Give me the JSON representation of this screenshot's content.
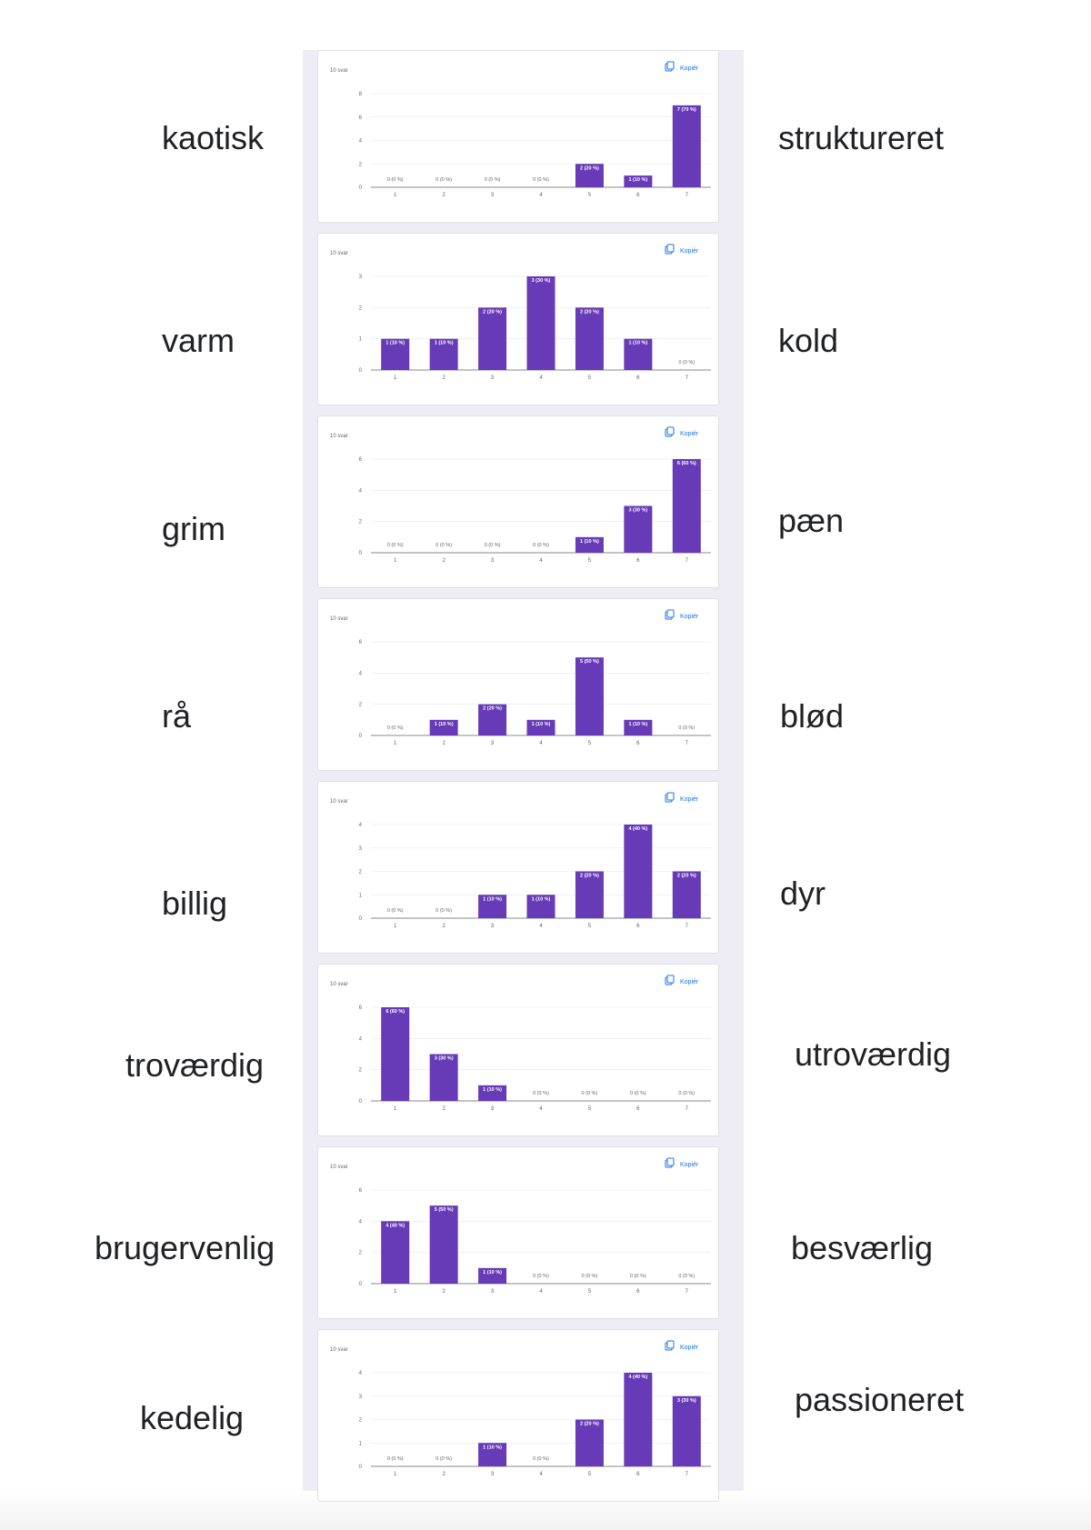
{
  "rows": [
    {
      "left": "kaotisk",
      "right": "struktureret",
      "chart": {
        "responses": "10 svar",
        "copy": "Kopiér",
        "yticks": [
          "0",
          "2",
          "4",
          "6",
          "8"
        ],
        "ymax": 8,
        "values": [
          0,
          0,
          0,
          0,
          2,
          1,
          7
        ],
        "labels": [
          "0 (0 %)",
          "0 (0 %)",
          "0 (0 %)",
          "0 (0 %)",
          "2 (20 %)",
          "1 (10 %)",
          "7 (70 %)"
        ]
      }
    },
    {
      "left": "varm",
      "right": "kold",
      "chart": {
        "responses": "10 svar",
        "copy": "Kopiér",
        "yticks": [
          "0",
          "1",
          "2",
          "3"
        ],
        "ymax": 3,
        "values": [
          1,
          1,
          2,
          3,
          2,
          1,
          0
        ],
        "labels": [
          "1 (10 %)",
          "1 (10 %)",
          "2 (20 %)",
          "3 (30 %)",
          "2 (20 %)",
          "1 (10 %)",
          "0 (0 %)"
        ]
      }
    },
    {
      "left": "grim",
      "right": "pæn",
      "chart": {
        "responses": "10 svar",
        "copy": "Kopiér",
        "yticks": [
          "0",
          "2",
          "4",
          "6"
        ],
        "ymax": 6,
        "values": [
          0,
          0,
          0,
          0,
          1,
          3,
          6
        ],
        "labels": [
          "0 (0 %)",
          "0 (0 %)",
          "0 (0 %)",
          "0 (0 %)",
          "1 (10 %)",
          "3 (30 %)",
          "6 (60 %)"
        ]
      }
    },
    {
      "left": "rå",
      "right": "blød",
      "chart": {
        "responses": "10 svar",
        "copy": "Kopiér",
        "yticks": [
          "0",
          "2",
          "4",
          "6"
        ],
        "ymax": 6,
        "values": [
          0,
          1,
          2,
          1,
          5,
          1,
          0
        ],
        "labels": [
          "0 (0 %)",
          "1 (10 %)",
          "2 (20 %)",
          "1 (10 %)",
          "5 (50 %)",
          "1 (10 %)",
          "0 (0 %)"
        ]
      }
    },
    {
      "left": "billig",
      "right": "dyr",
      "chart": {
        "responses": "10 svar",
        "copy": "Kopiér",
        "yticks": [
          "0",
          "1",
          "2",
          "3",
          "4"
        ],
        "ymax": 4,
        "values": [
          0,
          0,
          1,
          1,
          2,
          4,
          2
        ],
        "labels": [
          "0 (0 %)",
          "0 (0 %)",
          "1 (10 %)",
          "1 (10 %)",
          "2 (20 %)",
          "4 (40 %)",
          "2 (20 %)"
        ]
      }
    },
    {
      "left": "troværdig",
      "right": "utroværdig",
      "chart": {
        "responses": "10 svar",
        "copy": "Kopiér",
        "yticks": [
          "0",
          "2",
          "4",
          "6"
        ],
        "ymax": 6,
        "values": [
          6,
          3,
          1,
          0,
          0,
          0,
          0
        ],
        "labels": [
          "6 (60 %)",
          "3 (30 %)",
          "1 (10 %)",
          "0 (0 %)",
          "0 (0 %)",
          "0 (0 %)",
          "0 (0 %)"
        ]
      }
    },
    {
      "left": "brugervenlig",
      "right": "besværlig",
      "chart": {
        "responses": "10 svar",
        "copy": "Kopiér",
        "yticks": [
          "0",
          "2",
          "4",
          "6"
        ],
        "ymax": 6,
        "values": [
          4,
          5,
          1,
          0,
          0,
          0,
          0
        ],
        "labels": [
          "4 (40 %)",
          "5 (50 %)",
          "1 (10 %)",
          "0 (0 %)",
          "0 (0 %)",
          "0 (0 %)",
          "0 (0 %)"
        ]
      }
    },
    {
      "left": "kedelig",
      "right": "passioneret",
      "chart": {
        "responses": "10 svar",
        "copy": "Kopiér",
        "yticks": [
          "0",
          "1",
          "2",
          "3",
          "4"
        ],
        "ymax": 4,
        "values": [
          0,
          0,
          1,
          0,
          2,
          4,
          3
        ],
        "labels": [
          "0 (0 %)",
          "0 (0 %)",
          "1 (10 %)",
          "0 (0 %)",
          "2 (20 %)",
          "4 (40 %)",
          "3 (30 %)"
        ]
      }
    }
  ],
  "chart_data": [
    {
      "type": "bar",
      "categories": [
        "1",
        "2",
        "3",
        "4",
        "5",
        "6",
        "7"
      ],
      "values": [
        0,
        0,
        0,
        0,
        2,
        1,
        7
      ],
      "ylim": [
        0,
        8
      ]
    },
    {
      "type": "bar",
      "categories": [
        "1",
        "2",
        "3",
        "4",
        "5",
        "6",
        "7"
      ],
      "values": [
        1,
        1,
        2,
        3,
        2,
        1,
        0
      ],
      "ylim": [
        0,
        3
      ]
    },
    {
      "type": "bar",
      "categories": [
        "1",
        "2",
        "3",
        "4",
        "5",
        "6",
        "7"
      ],
      "values": [
        0,
        0,
        0,
        0,
        1,
        3,
        6
      ],
      "ylim": [
        0,
        6
      ]
    },
    {
      "type": "bar",
      "categories": [
        "1",
        "2",
        "3",
        "4",
        "5",
        "6",
        "7"
      ],
      "values": [
        0,
        1,
        2,
        1,
        5,
        1,
        0
      ],
      "ylim": [
        0,
        6
      ]
    },
    {
      "type": "bar",
      "categories": [
        "1",
        "2",
        "3",
        "4",
        "5",
        "6",
        "7"
      ],
      "values": [
        0,
        0,
        1,
        1,
        2,
        4,
        2
      ],
      "ylim": [
        0,
        4
      ]
    },
    {
      "type": "bar",
      "categories": [
        "1",
        "2",
        "3",
        "4",
        "5",
        "6",
        "7"
      ],
      "values": [
        6,
        3,
        1,
        0,
        0,
        0,
        0
      ],
      "ylim": [
        0,
        6
      ]
    },
    {
      "type": "bar",
      "categories": [
        "1",
        "2",
        "3",
        "4",
        "5",
        "6",
        "7"
      ],
      "values": [
        4,
        5,
        1,
        0,
        0,
        0,
        0
      ],
      "ylim": [
        0,
        6
      ]
    },
    {
      "type": "bar",
      "categories": [
        "1",
        "2",
        "3",
        "4",
        "5",
        "6",
        "7"
      ],
      "values": [
        0,
        0,
        1,
        0,
        2,
        4,
        3
      ],
      "ylim": [
        0,
        4
      ]
    }
  ],
  "colors": {
    "bar": "#673ab7",
    "copy": "#1a73e8",
    "panel": "#eeedf6"
  }
}
